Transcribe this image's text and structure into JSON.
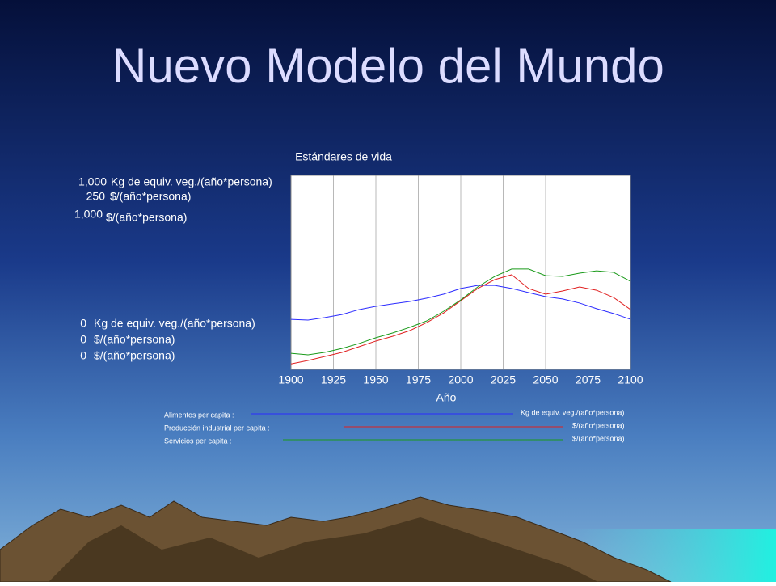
{
  "title": "Nuevo Modelo del Mundo",
  "chart_data": {
    "type": "line",
    "title": "Estándares de vida",
    "x_label": "Año",
    "x": [
      1900,
      1910,
      1920,
      1930,
      1940,
      1950,
      1960,
      1970,
      1980,
      1990,
      2000,
      2010,
      2020,
      2030,
      2040,
      2050,
      2060,
      2070,
      2080,
      2090,
      2100
    ],
    "xlim": [
      1900,
      2100
    ],
    "xticks": [
      1900,
      1925,
      1950,
      1975,
      2000,
      2025,
      2050,
      2075,
      2100
    ],
    "grid": true,
    "series": [
      {
        "name": "Alimentos per capita :",
        "unit": "Kg de equiv. veg./(año*persona)",
        "color": "#2b2bff",
        "ylim": [
          0,
          1000
        ],
        "yticks": [
          0,
          {
            "value": 1000,
            "label": "1,000"
          }
        ],
        "values": [
          258,
          254,
          267,
          283,
          308,
          325,
          338,
          350,
          367,
          388,
          417,
          433,
          433,
          417,
          396,
          375,
          363,
          342,
          313,
          288,
          258
        ]
      },
      {
        "name": "Producción industrial per capita :",
        "unit": "$/(año*persona)",
        "color": "#e02020",
        "ylim": [
          0,
          250
        ],
        "yticks": [
          0,
          250
        ],
        "values": [
          7,
          11.5,
          16.7,
          21.9,
          29.2,
          36.5,
          42.7,
          50,
          60.4,
          72.9,
          88.5,
          104.2,
          115.6,
          121.9,
          104.2,
          96.9,
          101,
          106.3,
          102,
          92.7,
          77.1
        ]
      },
      {
        "name": "Servicios per capita :",
        "unit": "$/(año*persona)",
        "color": "#1a9a1a",
        "ylim": [
          0,
          1000
        ],
        "yticks": [
          0,
          {
            "value": 1000,
            "label": "1,000"
          }
        ],
        "values": [
          83,
          75,
          88,
          108,
          133,
          163,
          188,
          217,
          250,
          300,
          358,
          425,
          479,
          517,
          517,
          483,
          479,
          496,
          508,
          500,
          454
        ]
      }
    ]
  }
}
